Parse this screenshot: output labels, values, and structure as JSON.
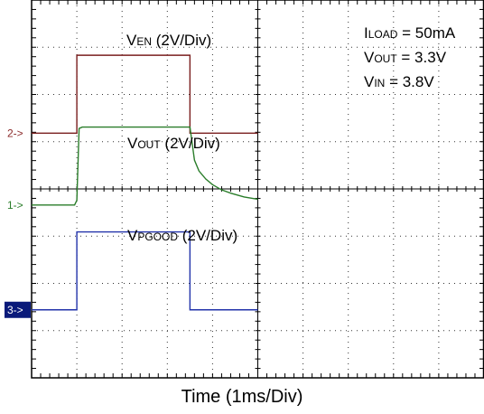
{
  "chart_data": {
    "type": "line",
    "xlabel": "Time (1ms/Div)",
    "x_divisions": 10,
    "y_divisions": 8,
    "time_per_div_ms": 1,
    "grid": true,
    "grid_style": "dotted",
    "annotations": {
      "iload": {
        "main": "I",
        "sub": "LOAD",
        "rest": " = 50mA"
      },
      "vout": {
        "main": "V",
        "sub": "OUT",
        "rest": " = 3.3V"
      },
      "vin": {
        "main": "V",
        "sub": "IN",
        "rest": " = 3.8V"
      }
    },
    "channel_markers": [
      {
        "label": "2->",
        "color": "#8b2a2a",
        "highlight": false
      },
      {
        "label": "1->",
        "color": "#2a7d2a",
        "highlight": false
      },
      {
        "label": "3->",
        "color": "#ffffff",
        "highlight": true,
        "bg": "#0a1a7a"
      }
    ],
    "series": [
      {
        "main": "V",
        "sub": "EN",
        "rest": "  (2V/Div)",
        "color": "#7a1e1e",
        "ground_div": 5.18,
        "points": [
          [
            0,
            0
          ],
          [
            1.0,
            0
          ],
          [
            1.0,
            1.65
          ],
          [
            3.5,
            1.65
          ],
          [
            3.5,
            0
          ],
          [
            5.0,
            0
          ]
        ]
      },
      {
        "main": "V",
        "sub": "OUT",
        "rest": " (2V/Div)",
        "color": "#2a7d2a",
        "ground_div": 3.66,
        "points": [
          [
            0,
            0
          ],
          [
            0.95,
            0
          ],
          [
            1.0,
            0.1
          ],
          [
            1.05,
            1.62
          ],
          [
            1.12,
            1.65
          ],
          [
            3.5,
            1.65
          ],
          [
            3.55,
            1.3
          ],
          [
            3.6,
            0.95
          ],
          [
            3.7,
            0.72
          ],
          [
            3.85,
            0.55
          ],
          [
            4.0,
            0.43
          ],
          [
            4.2,
            0.32
          ],
          [
            4.4,
            0.25
          ],
          [
            4.7,
            0.17
          ],
          [
            5.0,
            0.12
          ]
        ]
      },
      {
        "main": "V",
        "sub": "PGOOD",
        "rest": " (2V/Div)",
        "color": "#2233aa",
        "ground_div": 1.44,
        "points": [
          [
            0,
            0
          ],
          [
            1.0,
            0
          ],
          [
            1.0,
            1.65
          ],
          [
            3.5,
            1.65
          ],
          [
            3.5,
            0
          ],
          [
            5.0,
            0
          ]
        ]
      }
    ]
  }
}
